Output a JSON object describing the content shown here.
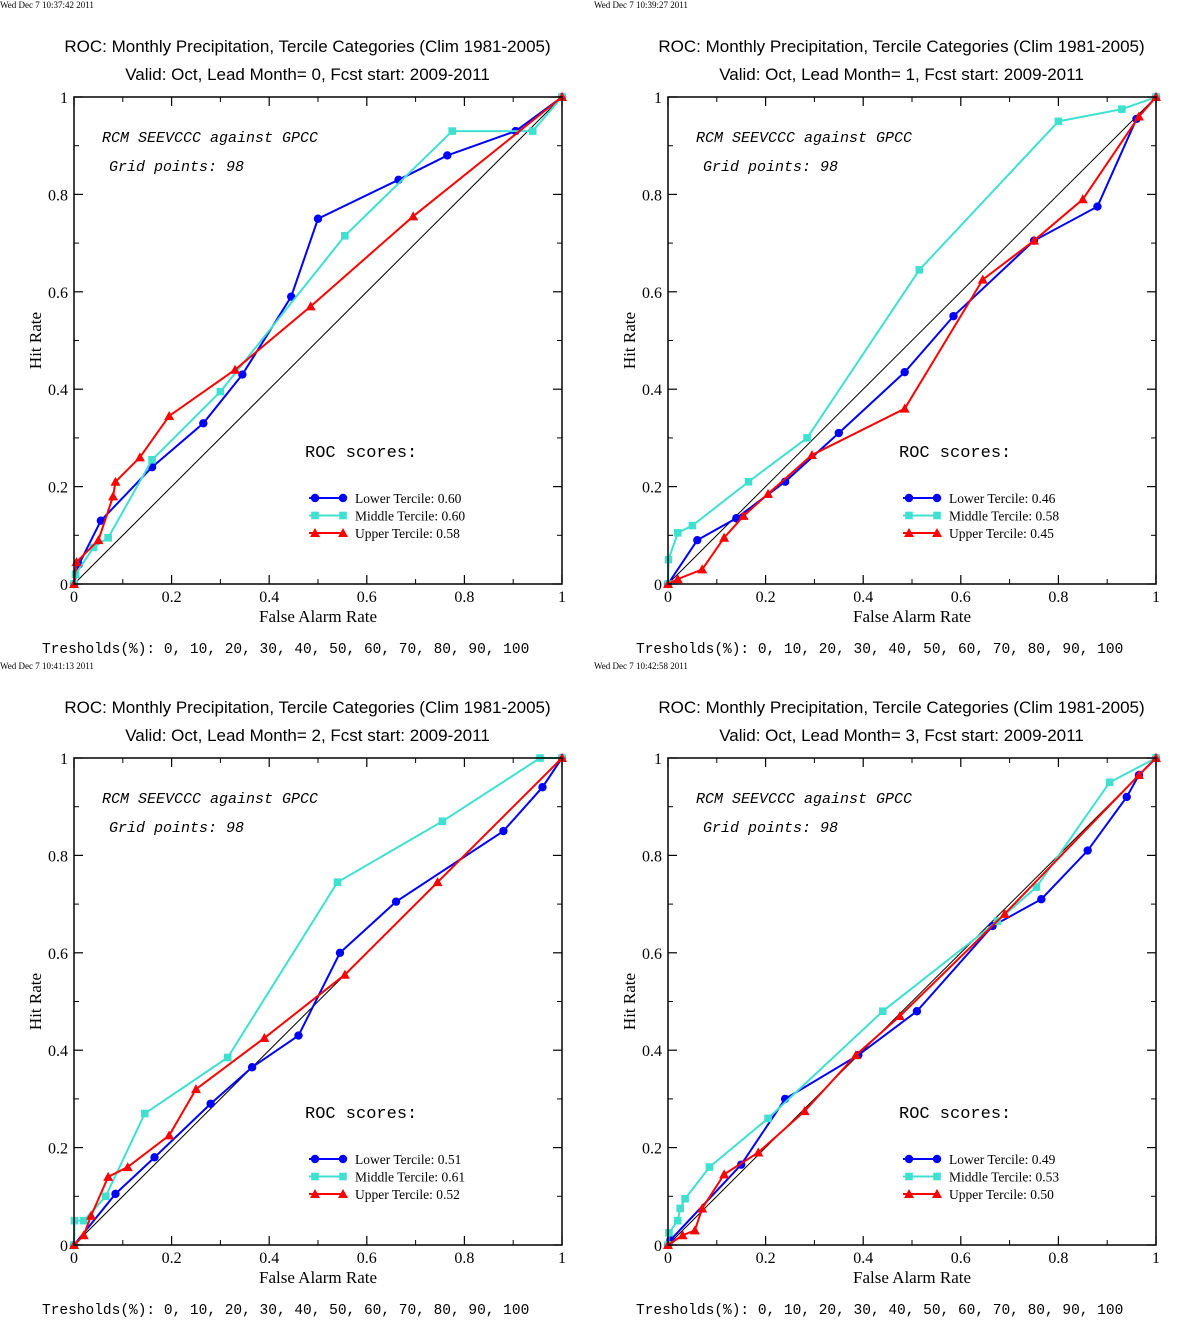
{
  "chart_data": [
    {
      "type": "line",
      "timestamp": "Wed Dec  7 10:37:42 2011",
      "title": "ROC: Monthly Precipitation, Tercile Categories (Clim 1981-2005)",
      "subtitle": "Valid: Oct, Lead Month= 0, Fcst start: 2009-2011",
      "xlabel": "False Alarm Rate",
      "ylabel": "Hit Rate",
      "xlim": [
        0,
        1
      ],
      "ylim": [
        0,
        1
      ],
      "xticks": [
        "0",
        "0.2",
        "0.4",
        "0.6",
        "0.8",
        "1"
      ],
      "yticks": [
        "0",
        "0.2",
        "0.4",
        "0.6",
        "0.8",
        "1"
      ],
      "annotation_1": "RCM SEEVCCC against GPCC",
      "annotation_2": "Grid points:   98",
      "scores_title": "ROC scores:",
      "thresholds": "Tresholds(%): 0, 10, 20, 30, 40, 50, 60, 70, 80, 90, 100",
      "series": [
        {
          "name": "Lower Tercile: 0.60",
          "color": "#0000ff",
          "marker": "circle",
          "x": [
            0,
            0.01,
            0.055,
            0.16,
            0.265,
            0.345,
            0.445,
            0.5,
            0.665,
            0.765,
            0.905,
            1
          ],
          "y": [
            0,
            0.04,
            0.13,
            0.24,
            0.33,
            0.43,
            0.59,
            0.75,
            0.83,
            0.88,
            0.93,
            1
          ]
        },
        {
          "name": "Middle Tercile: 0.60",
          "color": "#40e0d0",
          "marker": "square",
          "x": [
            0,
            0.003,
            0.04,
            0.07,
            0.16,
            0.3,
            0.555,
            0.775,
            0.94,
            1
          ],
          "y": [
            0,
            0.02,
            0.075,
            0.095,
            0.255,
            0.395,
            0.715,
            0.93,
            0.93,
            1
          ]
        },
        {
          "name": "Upper Tercile: 0.58",
          "color": "#ff0000",
          "marker": "triangle",
          "x": [
            0,
            0.005,
            0.05,
            0.08,
            0.085,
            0.135,
            0.195,
            0.33,
            0.485,
            0.695,
            1
          ],
          "y": [
            0,
            0.045,
            0.09,
            0.18,
            0.21,
            0.26,
            0.345,
            0.44,
            0.57,
            0.755,
            1
          ]
        }
      ]
    },
    {
      "type": "line",
      "timestamp": "Wed Dec  7 10:39:27 2011",
      "title": "ROC: Monthly Precipitation, Tercile Categories (Clim 1981-2005)",
      "subtitle": "Valid: Oct, Lead Month= 1, Fcst start: 2009-2011",
      "xlabel": "False Alarm Rate",
      "ylabel": "Hit Rate",
      "xlim": [
        0,
        1
      ],
      "ylim": [
        0,
        1
      ],
      "xticks": [
        "0",
        "0.2",
        "0.4",
        "0.6",
        "0.8",
        "1"
      ],
      "yticks": [
        "0",
        "0.2",
        "0.4",
        "0.6",
        "0.8",
        "1"
      ],
      "annotation_1": "RCM SEEVCCC against GPCC",
      "annotation_2": "Grid points:   98",
      "scores_title": "ROC scores:",
      "thresholds": "Tresholds(%): 0, 10, 20, 30, 40, 50, 60, 70, 80, 90, 100",
      "series": [
        {
          "name": "Lower Tercile: 0.46",
          "color": "#0000ff",
          "marker": "circle",
          "x": [
            0,
            0.06,
            0.14,
            0.24,
            0.35,
            0.485,
            0.585,
            0.75,
            0.88,
            0.96,
            1
          ],
          "y": [
            0,
            0.09,
            0.135,
            0.21,
            0.31,
            0.435,
            0.55,
            0.705,
            0.775,
            0.955,
            1
          ]
        },
        {
          "name": "Middle Tercile: 0.58",
          "color": "#40e0d0",
          "marker": "square",
          "x": [
            0,
            0.001,
            0.02,
            0.05,
            0.165,
            0.285,
            0.515,
            0.8,
            0.93,
            1
          ],
          "y": [
            0,
            0.05,
            0.105,
            0.12,
            0.21,
            0.3,
            0.645,
            0.95,
            0.975,
            1
          ]
        },
        {
          "name": "Upper Tercile: 0.45",
          "color": "#ff0000",
          "marker": "triangle",
          "x": [
            0,
            0.02,
            0.07,
            0.115,
            0.155,
            0.205,
            0.295,
            0.485,
            0.645,
            0.75,
            0.85,
            0.965,
            1
          ],
          "y": [
            0,
            0.01,
            0.03,
            0.095,
            0.14,
            0.185,
            0.265,
            0.36,
            0.625,
            0.705,
            0.79,
            0.96,
            1
          ]
        }
      ]
    },
    {
      "type": "line",
      "timestamp": "Wed Dec  7 10:41:13 2011",
      "title": "ROC: Monthly Precipitation, Tercile Categories (Clim 1981-2005)",
      "subtitle": "Valid: Oct, Lead Month= 2, Fcst start: 2009-2011",
      "xlabel": "False Alarm Rate",
      "ylabel": "Hit Rate",
      "xlim": [
        0,
        1
      ],
      "ylim": [
        0,
        1
      ],
      "xticks": [
        "0",
        "0.2",
        "0.4",
        "0.6",
        "0.8",
        "1"
      ],
      "yticks": [
        "0",
        "0.2",
        "0.4",
        "0.6",
        "0.8",
        "1"
      ],
      "annotation_1": "RCM SEEVCCC against GPCC",
      "annotation_2": "Grid points:   98",
      "scores_title": "ROC scores:",
      "thresholds": "Tresholds(%): 0, 10, 20, 30, 40, 50, 60, 70, 80, 90, 100",
      "series": [
        {
          "name": "Lower Tercile: 0.51",
          "color": "#0000ff",
          "marker": "circle",
          "x": [
            0,
            0.085,
            0.165,
            0.28,
            0.365,
            0.46,
            0.545,
            0.66,
            0.88,
            0.96,
            1
          ],
          "y": [
            0,
            0.105,
            0.18,
            0.29,
            0.365,
            0.43,
            0.6,
            0.705,
            0.85,
            0.94,
            1
          ]
        },
        {
          "name": "Middle Tercile: 0.61",
          "color": "#40e0d0",
          "marker": "square",
          "x": [
            0,
            0.001,
            0.02,
            0.065,
            0.145,
            0.315,
            0.54,
            0.755,
            0.955,
            1
          ],
          "y": [
            0,
            0.05,
            0.05,
            0.1,
            0.27,
            0.385,
            0.745,
            0.87,
            1,
            1
          ]
        },
        {
          "name": "Upper Tercile: 0.52",
          "color": "#ff0000",
          "marker": "triangle",
          "x": [
            0,
            0.02,
            0.035,
            0.07,
            0.11,
            0.195,
            0.25,
            0.39,
            0.555,
            0.745,
            1
          ],
          "y": [
            0,
            0.02,
            0.06,
            0.14,
            0.16,
            0.225,
            0.32,
            0.425,
            0.555,
            0.745,
            1
          ]
        }
      ]
    },
    {
      "type": "line",
      "timestamp": "Wed Dec  7 10:42:58 2011",
      "title": "ROC: Monthly Precipitation, Tercile Categories (Clim 1981-2005)",
      "subtitle": "Valid: Oct, Lead Month= 3, Fcst start: 2009-2011",
      "xlabel": "False Alarm Rate",
      "ylabel": "Hit Rate",
      "xlim": [
        0,
        1
      ],
      "ylim": [
        0,
        1
      ],
      "xticks": [
        "0",
        "0.2",
        "0.4",
        "0.6",
        "0.8",
        "1"
      ],
      "yticks": [
        "0",
        "0.2",
        "0.4",
        "0.6",
        "0.8",
        "1"
      ],
      "annotation_1": "RCM SEEVCCC against GPCC",
      "annotation_2": "Grid points:   98",
      "scores_title": "ROC scores:",
      "thresholds": "Tresholds(%): 0, 10, 20, 30, 40, 50, 60, 70, 80, 90, 100",
      "series": [
        {
          "name": "Lower Tercile: 0.49",
          "color": "#0000ff",
          "marker": "circle",
          "x": [
            0,
            0.005,
            0.15,
            0.24,
            0.39,
            0.51,
            0.665,
            0.765,
            0.86,
            0.94,
            0.965,
            1
          ],
          "y": [
            0,
            0.01,
            0.165,
            0.3,
            0.39,
            0.48,
            0.655,
            0.71,
            0.81,
            0.92,
            0.965,
            1
          ]
        },
        {
          "name": "Middle Tercile: 0.53",
          "color": "#40e0d0",
          "marker": "square",
          "x": [
            0,
            0.002,
            0.02,
            0.025,
            0.035,
            0.085,
            0.205,
            0.44,
            0.675,
            0.755,
            0.905,
            1
          ],
          "y": [
            0,
            0.025,
            0.05,
            0.075,
            0.095,
            0.16,
            0.26,
            0.48,
            0.665,
            0.735,
            0.95,
            1
          ]
        },
        {
          "name": "Upper Tercile: 0.50",
          "color": "#ff0000",
          "marker": "triangle",
          "x": [
            0,
            0.03,
            0.055,
            0.07,
            0.115,
            0.185,
            0.28,
            0.385,
            0.475,
            0.69,
            0.965,
            1
          ],
          "y": [
            0,
            0.02,
            0.03,
            0.075,
            0.145,
            0.19,
            0.275,
            0.39,
            0.47,
            0.68,
            0.965,
            1
          ]
        }
      ]
    }
  ]
}
